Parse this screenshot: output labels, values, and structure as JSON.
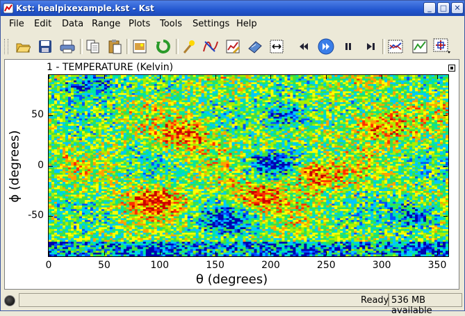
{
  "window": {
    "title": "Kst: healpixexample.kst - Kst",
    "controls": {
      "minimize": "_",
      "maximize": "□",
      "close": "✕"
    }
  },
  "menu": [
    {
      "label": "File",
      "key": "F"
    },
    {
      "label": "Edit",
      "key": "E"
    },
    {
      "label": "Data",
      "key": "D"
    },
    {
      "label": "Range",
      "key": "R"
    },
    {
      "label": "Plots",
      "key": "P"
    },
    {
      "label": "Tools",
      "key": "T"
    },
    {
      "label": "Settings",
      "key": "S"
    },
    {
      "label": "Help",
      "key": "H"
    }
  ],
  "toolbar": [
    "open-icon",
    "save-icon",
    "print-icon",
    "copy-icon",
    "paste-icon",
    "export-image-icon",
    "reload-icon",
    "pick-icon",
    "data-wizard-icon",
    "edit-plot-icon",
    "layout-icon",
    "zoom-fit-icon",
    "rewind-icon",
    "play-icon",
    "pause-icon",
    "advance-end-icon",
    "graph-mode-icon",
    "plot-mode-icon",
    "select-mode-icon"
  ],
  "plot": {
    "title": "1 - TEMPERATURE (Kelvin)",
    "xlabel": "θ (degrees)",
    "ylabel": "ϕ (degrees)"
  },
  "chart_data": {
    "type": "heatmap",
    "title": "1 - TEMPERATURE (Kelvin)",
    "xlabel": "θ (degrees)",
    "ylabel": "ϕ (degrees)",
    "xlim": [
      0,
      360
    ],
    "ylim": [
      -90,
      90
    ],
    "x_ticks": [
      "0",
      "50",
      "100",
      "150",
      "200",
      "250",
      "300",
      "350"
    ],
    "y_ticks": [
      "50",
      "0",
      "-50"
    ],
    "x_tick_values": [
      0,
      50,
      100,
      150,
      200,
      250,
      300,
      350
    ],
    "y_tick_values": [
      50,
      0,
      -50
    ],
    "colormap": [
      "#0000b0",
      "#0050ff",
      "#00c8ff",
      "#00e6a0",
      "#40e040",
      "#a8f000",
      "#ffff00",
      "#ffa000",
      "#ff3000",
      "#c80000"
    ],
    "hot_spots": [
      [
        125,
        30
      ],
      [
        240,
        -10
      ],
      [
        300,
        40
      ],
      [
        190,
        -30
      ],
      [
        95,
        -35
      ]
    ],
    "cold_spots": [
      [
        200,
        0
      ],
      [
        215,
        50
      ],
      [
        330,
        -50
      ],
      [
        160,
        -55
      ],
      [
        35,
        80
      ]
    ]
  },
  "status": {
    "text": "Ready",
    "memory": "536 MB available"
  }
}
